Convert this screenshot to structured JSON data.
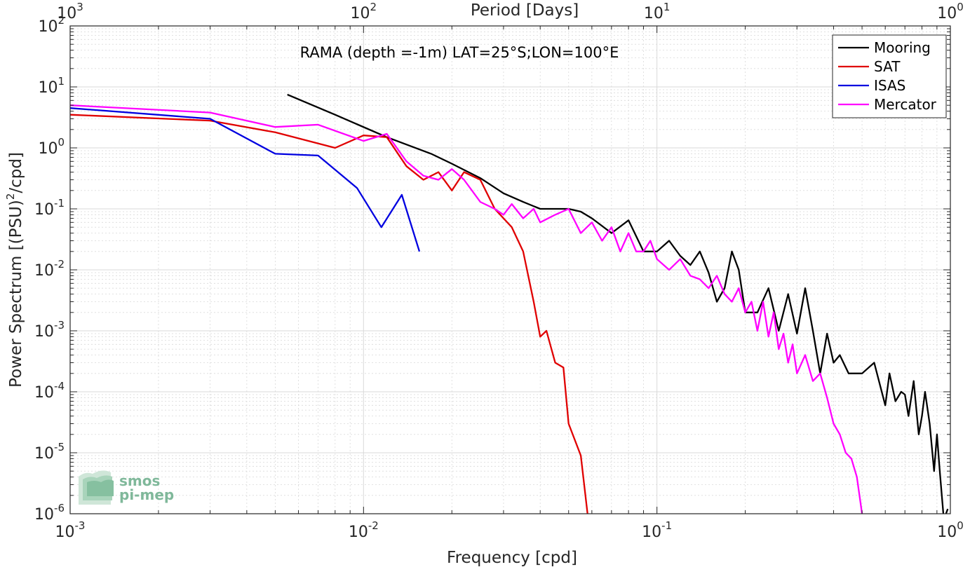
{
  "chart_data": {
    "type": "line",
    "xscale": "log",
    "yscale": "log",
    "xlim": [
      0.001,
      1
    ],
    "ylim": [
      1e-06,
      100
    ],
    "grid": true,
    "minor_grid": true,
    "title": "",
    "annotation": "RAMA (depth =-1m) LAT=25°S;LON=100°E",
    "xlabel": "Frequency [cpd]",
    "ylabel_main": "Power Spectrum [(PSU)",
    "ylabel_exp": "2",
    "ylabel_tail": "/cpd]",
    "top_axis_label": "Period [Days]",
    "x_ticks": [
      {
        "v": 0.001,
        "m": "10",
        "e": "-3"
      },
      {
        "v": 0.01,
        "m": "10",
        "e": "-2"
      },
      {
        "v": 0.1,
        "m": "10",
        "e": "-1"
      },
      {
        "v": 1,
        "m": "10",
        "e": "0"
      }
    ],
    "y_ticks": [
      {
        "v": 100,
        "m": "10",
        "e": "2"
      },
      {
        "v": 10,
        "m": "10",
        "e": "1"
      },
      {
        "v": 1,
        "m": "10",
        "e": "0"
      },
      {
        "v": 0.1,
        "m": "10",
        "e": "-1"
      },
      {
        "v": 0.01,
        "m": "10",
        "e": "-2"
      },
      {
        "v": 0.001,
        "m": "10",
        "e": "-3"
      },
      {
        "v": 0.0001,
        "m": "10",
        "e": "-4"
      },
      {
        "v": 1e-05,
        "m": "10",
        "e": "-5"
      },
      {
        "v": 1e-06,
        "m": "10",
        "e": "-6"
      }
    ],
    "top_ticks": [
      {
        "v": 0.001,
        "m": "10",
        "e": "3"
      },
      {
        "v": 0.01,
        "m": "10",
        "e": "2"
      },
      {
        "v": 0.1,
        "m": "10",
        "e": "1"
      },
      {
        "v": 1,
        "m": "10",
        "e": "0"
      }
    ],
    "legend_position": "top-right",
    "series": [
      {
        "name": "Mooring",
        "color": "#000000",
        "x": [
          0.0055,
          0.008,
          0.012,
          0.017,
          0.02,
          0.025,
          0.03,
          0.035,
          0.04,
          0.045,
          0.05,
          0.055,
          0.06,
          0.07,
          0.08,
          0.09,
          0.1,
          0.11,
          0.12,
          0.13,
          0.14,
          0.15,
          0.16,
          0.17,
          0.18,
          0.19,
          0.2,
          0.22,
          0.24,
          0.26,
          0.28,
          0.3,
          0.32,
          0.34,
          0.36,
          0.38,
          0.4,
          0.42,
          0.45,
          0.48,
          0.5,
          0.55,
          0.6,
          0.62,
          0.65,
          0.68,
          0.7,
          0.72,
          0.75,
          0.78,
          0.8,
          0.82,
          0.85,
          0.88,
          0.9,
          0.92,
          0.95,
          0.98
        ],
        "y": [
          7.5,
          3.5,
          1.5,
          0.8,
          0.55,
          0.32,
          0.18,
          0.13,
          0.1,
          0.1,
          0.1,
          0.09,
          0.07,
          0.04,
          0.065,
          0.02,
          0.02,
          0.03,
          0.017,
          0.012,
          0.02,
          0.009,
          0.003,
          0.005,
          0.02,
          0.01,
          0.002,
          0.002,
          0.005,
          0.001,
          0.004,
          0.0009,
          0.005,
          0.001,
          0.0002,
          0.0009,
          0.0003,
          0.0004,
          0.0002,
          0.0002,
          0.0002,
          0.0003,
          6e-05,
          0.0002,
          7e-05,
          0.0001,
          9e-05,
          4e-05,
          0.00015,
          2e-05,
          4e-05,
          0.0001,
          3e-05,
          5e-06,
          2e-05,
          5e-06,
          8e-07,
          1.2e-06
        ]
      },
      {
        "name": "SAT",
        "color": "#e00000",
        "x": [
          0.001,
          0.003,
          0.005,
          0.008,
          0.01,
          0.012,
          0.014,
          0.016,
          0.018,
          0.02,
          0.022,
          0.025,
          0.028,
          0.032,
          0.035,
          0.038,
          0.04,
          0.042,
          0.045,
          0.048,
          0.05,
          0.055,
          0.058
        ],
        "y": [
          3.5,
          2.8,
          1.8,
          1.0,
          1.6,
          1.5,
          0.5,
          0.3,
          0.4,
          0.2,
          0.4,
          0.3,
          0.1,
          0.05,
          0.02,
          0.003,
          0.0008,
          0.001,
          0.0003,
          0.00025,
          3e-05,
          9e-06,
          1e-06
        ]
      },
      {
        "name": "ISAS",
        "color": "#0000e0",
        "x": [
          0.001,
          0.003,
          0.005,
          0.007,
          0.0095,
          0.0115,
          0.0135,
          0.0155
        ],
        "y": [
          4.5,
          3.0,
          0.8,
          0.75,
          0.22,
          0.05,
          0.17,
          0.02
        ]
      },
      {
        "name": "Mercator",
        "color": "#ff00ff",
        "x": [
          0.001,
          0.003,
          0.005,
          0.007,
          0.01,
          0.012,
          0.014,
          0.016,
          0.018,
          0.02,
          0.022,
          0.025,
          0.028,
          0.03,
          0.032,
          0.035,
          0.038,
          0.04,
          0.045,
          0.05,
          0.055,
          0.06,
          0.065,
          0.07,
          0.075,
          0.08,
          0.085,
          0.09,
          0.095,
          0.1,
          0.11,
          0.12,
          0.13,
          0.14,
          0.15,
          0.16,
          0.17,
          0.18,
          0.19,
          0.2,
          0.21,
          0.22,
          0.23,
          0.24,
          0.25,
          0.26,
          0.27,
          0.28,
          0.29,
          0.3,
          0.32,
          0.34,
          0.36,
          0.38,
          0.4,
          0.42,
          0.44,
          0.46,
          0.48,
          0.5
        ],
        "y": [
          5.0,
          3.8,
          2.2,
          2.4,
          1.3,
          1.7,
          0.6,
          0.35,
          0.3,
          0.45,
          0.3,
          0.13,
          0.1,
          0.08,
          0.12,
          0.07,
          0.1,
          0.06,
          0.08,
          0.1,
          0.04,
          0.06,
          0.03,
          0.05,
          0.02,
          0.04,
          0.02,
          0.02,
          0.03,
          0.015,
          0.01,
          0.015,
          0.008,
          0.007,
          0.005,
          0.008,
          0.004,
          0.003,
          0.005,
          0.002,
          0.003,
          0.001,
          0.003,
          0.0008,
          0.002,
          0.0005,
          0.0009,
          0.0003,
          0.0006,
          0.0002,
          0.0004,
          0.00015,
          0.0002,
          8e-05,
          3e-05,
          2e-05,
          1e-05,
          8e-06,
          4e-06,
          1e-06
        ]
      }
    ]
  },
  "watermark": {
    "line1": "smos",
    "line2": "pi-mep"
  },
  "grid_color": "#d9d9d9",
  "axis_color": "#262626"
}
